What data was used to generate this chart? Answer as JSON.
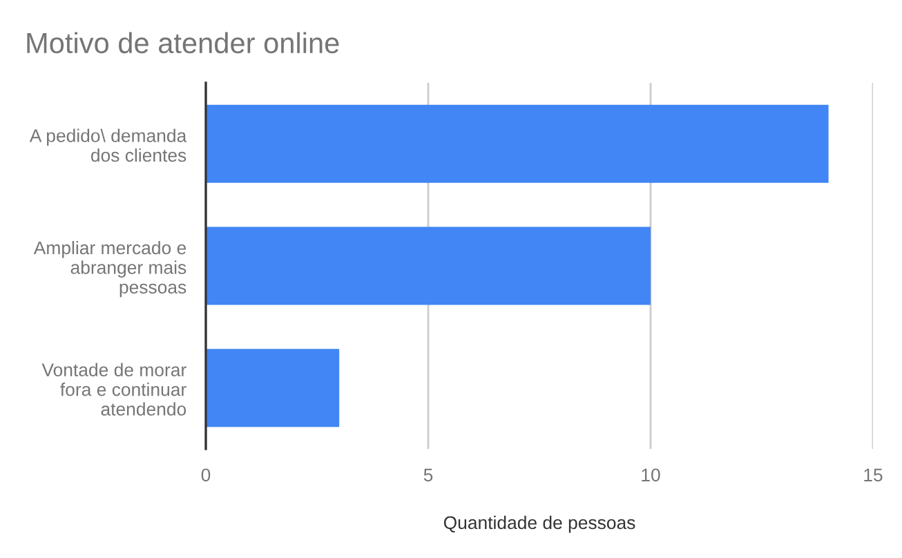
{
  "chart_data": {
    "type": "bar",
    "orientation": "horizontal",
    "title": "Motivo de atender online",
    "xlabel": "Quantidade de pessoas",
    "categories": [
      "A pedido\\ demanda\ndos clientes",
      "Ampliar mercado e\nabranger mais\npessoas",
      "Vontade de morar\nfora e continuar\natendendo"
    ],
    "values": [
      14,
      10,
      3
    ],
    "color": "#4285f4",
    "xlim": [
      0,
      15
    ],
    "xticks": [
      0,
      5,
      10,
      15
    ],
    "grid": "x"
  }
}
